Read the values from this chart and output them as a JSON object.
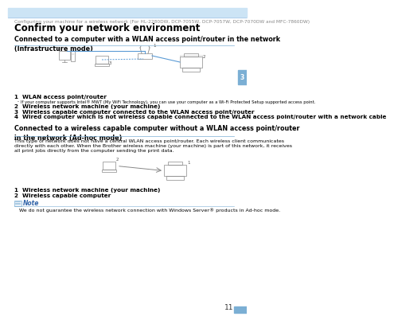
{
  "page_bg": "#ffffff",
  "header_bg": "#cce4f5",
  "header_line_color": "#a8c8e8",
  "tab_color": "#7bafd4",
  "tab_text": "3",
  "tab_text_color": "#ffffff",
  "breadcrumb": "Configuring your machine for a wireless network (For HL-2280DW, DCP-7055W, DCP-7057W, DCP-7070DW and MFC-7860DW)",
  "breadcrumb_color": "#888888",
  "breadcrumb_fontsize": 4.2,
  "main_title": "Confirm your network environment",
  "main_title_fontsize": 8.5,
  "section1_title": "Connected to a computer with a WLAN access point/router in the network\n(Infrastructure mode)",
  "section1_title_fontsize": 5.8,
  "divider_color": "#7bafd4",
  "section1_items": [
    [
      "1",
      "WLAN access point/router",
      true,
      5.2,
      false
    ],
    [
      "",
      "¹  If your computer supports Intel® MWT (My WiFi Technology), you can use your computer as a Wi-Fi Protected Setup supported access point.",
      false,
      3.8,
      true
    ],
    [
      "2",
      "Wireless network machine (your machine)",
      true,
      5.2,
      false
    ],
    [
      "3",
      "Wireless capable computer connected to the WLAN access point/router",
      true,
      5.2,
      false
    ],
    [
      "4",
      "Wired computer which is not wireless capable connected to the WLAN access point/router with a network cable",
      true,
      5.2,
      true
    ]
  ],
  "section2_title": "Connected to a wireless capable computer without a WLAN access point/router\nin the network (Ad-hoc mode)",
  "section2_title_fontsize": 5.8,
  "section2_body": "This type of network does not have a central WLAN access point/router. Each wireless client communicates\ndirectly with each other. When the Brother wireless machine (your machine) is part of this network, it receives\nall print jobs directly from the computer sending the print data.",
  "section2_body_fontsize": 4.5,
  "section2_items": [
    [
      "1",
      "Wireless network machine (your machine)",
      true,
      5.2
    ],
    [
      "2",
      "Wireless capable computer",
      true,
      5.2
    ]
  ],
  "note_title": "Note",
  "note_title_color": "#3366aa",
  "note_text": "We do not guarantee the wireless network connection with Windows Server® products in Ad-hoc mode.",
  "note_fontsize": 4.5,
  "note_line_color": "#7bafd4",
  "diagram_color": "#888888",
  "wire_color": "#5b9bd5",
  "page_number": "11",
  "page_number_fontsize": 6.5,
  "page_number_color": "#333333"
}
